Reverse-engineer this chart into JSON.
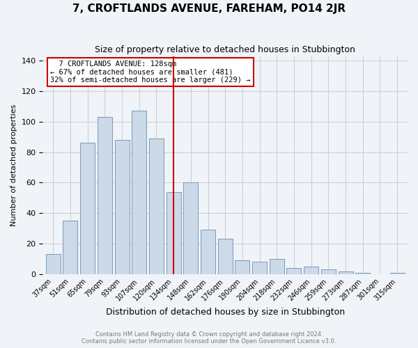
{
  "title": "7, CROFTLANDS AVENUE, FAREHAM, PO14 2JR",
  "subtitle": "Size of property relative to detached houses in Stubbington",
  "xlabel": "Distribution of detached houses by size in Stubbington",
  "ylabel": "Number of detached properties",
  "footnote1": "Contains HM Land Registry data © Crown copyright and database right 2024.",
  "footnote2": "Contains public sector information licensed under the Open Government Licence v3.0.",
  "annotation_line1": "  7 CROFTLANDS AVENUE: 128sqm",
  "annotation_line2": "← 67% of detached houses are smaller (481)",
  "annotation_line3": "32% of semi-detached houses are larger (229) →",
  "bar_color": "#ccd9e8",
  "bar_edge_color": "#7799bb",
  "vline_color": "#cc0000",
  "annotation_box_edge": "#cc0000",
  "categories": [
    "37sqm",
    "51sqm",
    "65sqm",
    "79sqm",
    "93sqm",
    "107sqm",
    "120sqm",
    "134sqm",
    "148sqm",
    "162sqm",
    "176sqm",
    "190sqm",
    "204sqm",
    "218sqm",
    "232sqm",
    "246sqm",
    "259sqm",
    "273sqm",
    "287sqm",
    "301sqm",
    "315sqm"
  ],
  "values": [
    13,
    35,
    86,
    103,
    88,
    107,
    89,
    54,
    60,
    29,
    23,
    9,
    8,
    10,
    4,
    5,
    3,
    2,
    1,
    0,
    1
  ],
  "ylim": [
    0,
    143
  ],
  "yticks": [
    0,
    20,
    40,
    60,
    80,
    100,
    120,
    140
  ],
  "vline_x": 7.0,
  "background_color": "#f0f4f8",
  "grid_color": "#c8d0d8",
  "title_fontsize": 11,
  "subtitle_fontsize": 9,
  "xlabel_fontsize": 9,
  "ylabel_fontsize": 8
}
